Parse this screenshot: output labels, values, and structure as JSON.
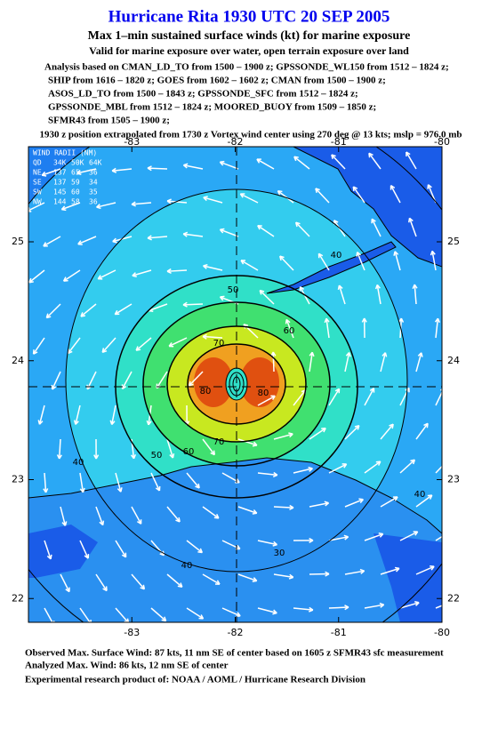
{
  "header": {
    "title": "Hurricane Rita 1930 UTC 20 SEP 2005",
    "subtitle": "Max 1–min sustained surface winds (kt) for marine exposure",
    "note": "Valid for marine exposure over water, open terrain exposure over land",
    "analysis": [
      "Analysis based on  CMAN_LD_TO from 1500 – 1900 z;  GPSSONDE_WL150 from 1512 – 1824 z;",
      "SHIP from 1616 – 1820 z;  GOES from 1602 – 1602 z;  CMAN from 1500 – 1900 z;",
      "ASOS_LD_TO from 1500 – 1843 z;  GPSSONDE_SFC from 1512 – 1824 z;",
      "GPSSONDE_MBL from 1512 – 1824 z;  MOORED_BUOY from 1509 – 1850 z;",
      "SFMR43 from 1505 – 1900 z;"
    ],
    "position": "1930 z position extrapolated from 1730 z Vortex wind center using 270 deg @ 13 kts; mslp = 976.0 mb"
  },
  "map": {
    "xlim": [
      -84.0,
      -80.0
    ],
    "ylim": [
      21.8,
      25.8
    ],
    "xticks": [
      -83,
      -82,
      -81,
      -80
    ],
    "yticks": [
      25,
      24,
      23,
      22
    ],
    "contour_labels": [
      40,
      50,
      60,
      70,
      80,
      80,
      70,
      60,
      50,
      40,
      40,
      30,
      40
    ]
  },
  "radii_table": {
    "title": "WIND RADII (NM)",
    "header": [
      "QD",
      "34K",
      "50K",
      "64K"
    ],
    "rows": [
      [
        "NE",
        "137",
        "65",
        "36"
      ],
      [
        "SE",
        "137",
        "59",
        "34"
      ],
      [
        "SW",
        "145",
        "60",
        "35"
      ],
      [
        "NW",
        "144",
        "58",
        "36"
      ]
    ]
  },
  "footer": [
    "Observed Max. Surface Wind: 87 kts, 11 nm SE of center based on 1605 z SFMR43 sfc measurement",
    "Analyzed Max. Wind: 86 kts, 12 nm SE of center",
    "Experimental research product of:  NOAA / AOML / Hurricane Research Division"
  ]
}
